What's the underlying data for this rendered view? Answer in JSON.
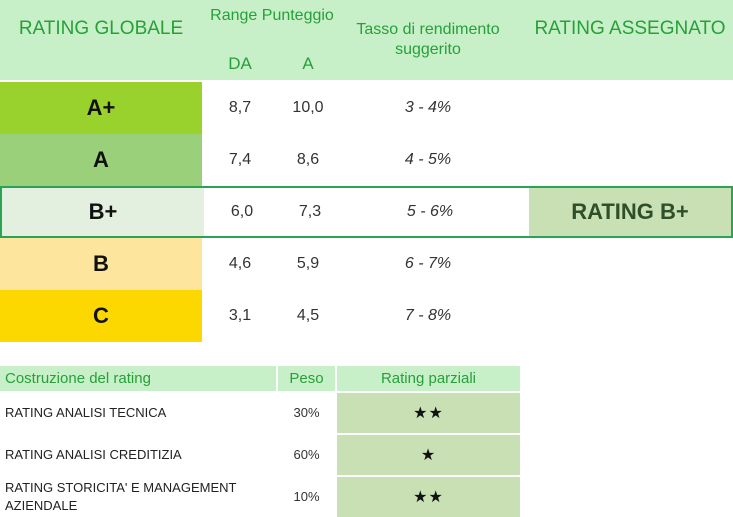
{
  "header": {
    "rating_globale": "RATING GLOBALE",
    "range_punteggio": "Range Punteggio",
    "da": "DA",
    "a": "A",
    "tasso": "Tasso di rendimento suggerito",
    "rating_assegnato": "RATING ASSEGNATO"
  },
  "rows": [
    {
      "grade": "A+",
      "da": "8,7",
      "a": "10,0",
      "tasso": "3 - 4%",
      "color": "#9ad22d"
    },
    {
      "grade": "A",
      "da": "7,4",
      "a": "8,6",
      "tasso": "4 - 5%",
      "color": "#9bd07a"
    },
    {
      "grade": "B+",
      "da": "6,0",
      "a": "7,3",
      "tasso": "5 - 6%",
      "color": "#e3f0df"
    },
    {
      "grade": "B",
      "da": "4,6",
      "a": "5,9",
      "tasso": "6 - 7%",
      "color": "#fde59e"
    },
    {
      "grade": "C",
      "da": "3,1",
      "a": "4,5",
      "tasso": "7 - 8%",
      "color": "#fdd700"
    }
  ],
  "assigned": {
    "label": "RATING B+",
    "row": "B+"
  },
  "construction": {
    "header": {
      "costruzione": "Costruzione del rating",
      "peso": "Peso",
      "parziali": "Rating parziali"
    },
    "items": [
      {
        "label": "RATING  ANALISI TECNICA",
        "peso": "30%",
        "stars": "★★"
      },
      {
        "label": "RATING ANALISI CREDITIZIA",
        "peso": "60%",
        "stars": "★"
      },
      {
        "label": "RATING STORICITA' E MANAGEMENT AZIENDALE",
        "peso": "10%",
        "stars": "★★"
      }
    ]
  },
  "colors": {
    "header_bg": "#c8f0c8",
    "header_text": "#27a03a",
    "highlight_border": "#2aa356",
    "partial_bg": "#c9e0b4"
  }
}
